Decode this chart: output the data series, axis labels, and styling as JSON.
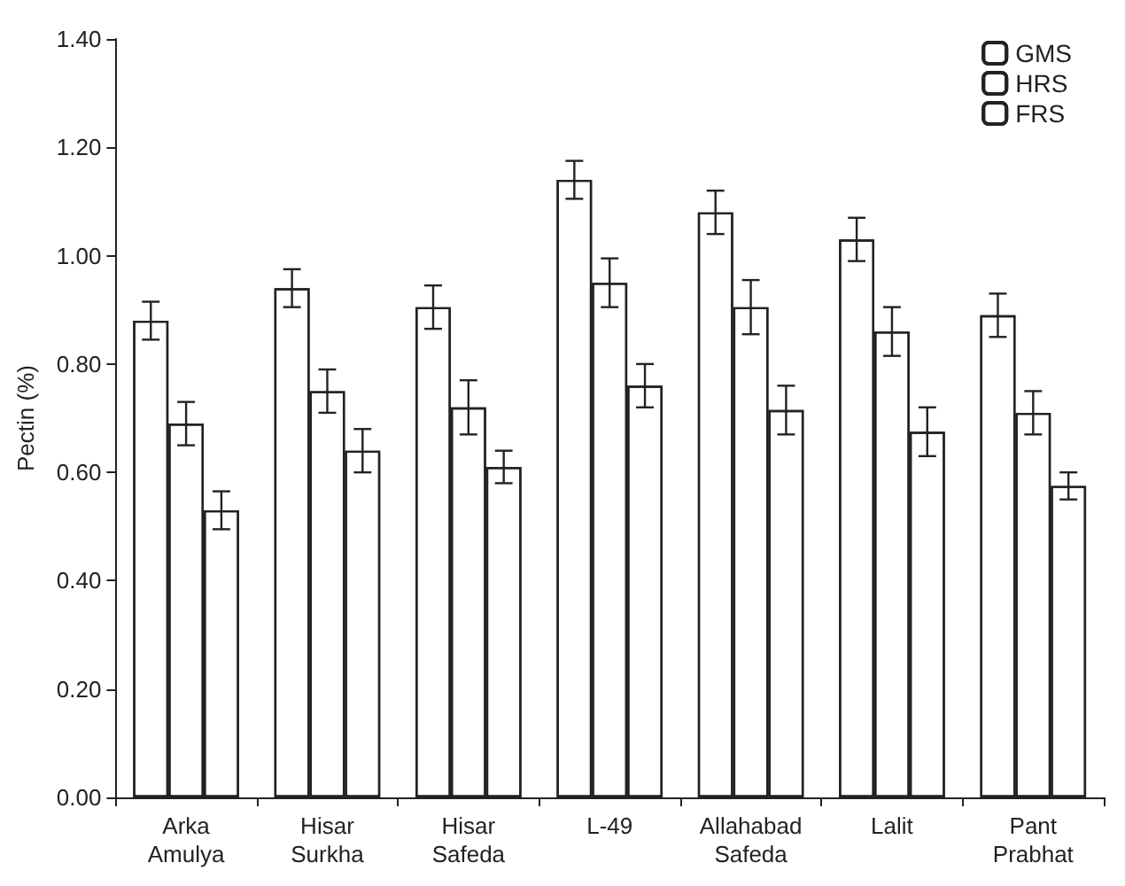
{
  "chart_data": {
    "type": "bar",
    "ylabel": "Pectin (%)",
    "categories": [
      "Arka Amulya",
      "Hisar Surkha",
      "Hisar Safeda",
      "L-49",
      "Allahabad Safeda",
      "Lalit",
      "Pant Prabhat"
    ],
    "series": [
      {
        "name": "GMS",
        "color": "#222222",
        "values": [
          0.88,
          0.94,
          0.905,
          1.14,
          1.08,
          1.03,
          0.89
        ],
        "errors": [
          0.035,
          0.035,
          0.04,
          0.035,
          0.04,
          0.04,
          0.04
        ]
      },
      {
        "name": "HRS",
        "color": "#222222",
        "values": [
          0.69,
          0.75,
          0.72,
          0.95,
          0.905,
          0.86,
          0.71
        ],
        "errors": [
          0.04,
          0.04,
          0.05,
          0.045,
          0.05,
          0.045,
          0.04
        ]
      },
      {
        "name": "FRS",
        "color": "#222222",
        "values": [
          0.53,
          0.64,
          0.61,
          0.76,
          0.715,
          0.675,
          0.575
        ],
        "errors": [
          0.035,
          0.04,
          0.03,
          0.04,
          0.045,
          0.045,
          0.025
        ]
      }
    ],
    "ylim": [
      0,
      1.4
    ],
    "yticks": [
      {
        "value": 0,
        "label": "0.00"
      },
      {
        "value": 0.2,
        "label": "0.20"
      },
      {
        "value": 0.4,
        "label": "0.40"
      },
      {
        "value": 0.6,
        "label": "0.60"
      },
      {
        "value": 0.8,
        "label": "0.80"
      },
      {
        "value": 1.0,
        "label": "1.00"
      },
      {
        "value": 1.2,
        "label": "1.20"
      },
      {
        "value": 1.4,
        "label": "1.40"
      }
    ],
    "grid": false,
    "legend": "top right"
  }
}
